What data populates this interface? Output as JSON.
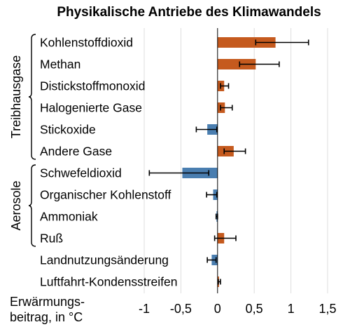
{
  "chart_data": {
    "type": "bar",
    "orientation": "horizontal",
    "title": "Physikalische Antriebe des Klimawandels",
    "ylabel_line1": "Erwärmungs-",
    "ylabel_line2": "beitrag, in °C",
    "xlim": [
      -1,
      1.5
    ],
    "xticks": [
      -1,
      -0.5,
      0,
      0.5,
      1,
      1.5
    ],
    "xtick_labels": [
      "-1",
      "-0,5",
      "0",
      "0,5",
      "1",
      "1,5"
    ],
    "grid": "vertical",
    "colors": {
      "positive": "#c55a1e",
      "negative": "#4a7eb0",
      "error_bar": "#000000"
    },
    "groups": [
      {
        "label": "Treibhausgase",
        "from": 0,
        "to": 5
      },
      {
        "label": "Aerosole",
        "from": 6,
        "to": 9
      }
    ],
    "categories": [
      "Kohlenstoffdioxid",
      "Methan",
      "Distickstoffmonoxid",
      "Halogenierte Gase",
      "Stickoxide",
      "Andere Gase",
      "Schwefeldioxid",
      "Organischer Kohlenstoff",
      "Ammoniak",
      "Ruß",
      "Landnutzungsänderung",
      "Luftfahrt-Kondensstreifen"
    ],
    "values": [
      0.79,
      0.52,
      0.09,
      0.1,
      -0.14,
      0.22,
      -0.48,
      -0.06,
      -0.01,
      0.09,
      -0.08,
      0.02
    ],
    "error_low": [
      0.52,
      0.3,
      0.04,
      0.04,
      -0.29,
      0.09,
      -0.93,
      -0.15,
      -0.02,
      -0.04,
      -0.14,
      0.01
    ],
    "error_high": [
      1.24,
      0.84,
      0.15,
      0.2,
      -0.01,
      0.38,
      -0.12,
      -0.01,
      0.0,
      0.25,
      -0.02,
      0.04
    ]
  }
}
